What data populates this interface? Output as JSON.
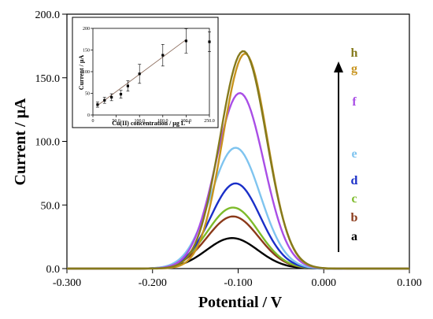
{
  "chart_data": [
    {
      "type": "line",
      "title": "",
      "xlabel": "Potential / V",
      "ylabel": "Current / μA",
      "xlim": [
        -0.3,
        0.1
      ],
      "ylim": [
        0,
        200
      ],
      "xticks": [
        -0.3,
        -0.2,
        -0.1,
        0.0,
        0.1
      ],
      "xtick_labels": [
        "-0.300",
        "-0.200",
        "-0.100",
        "0.000",
        "0.100"
      ],
      "yticks": [
        0,
        50,
        100,
        150,
        200
      ],
      "ytick_labels": [
        "0.0",
        "50.0",
        "100.0",
        "150.0",
        "200.0"
      ],
      "grid": false,
      "series": [
        {
          "name": "a",
          "color": "#000000",
          "peak_x": -0.107,
          "peak_y": 24,
          "width": 0.03
        },
        {
          "name": "b",
          "color": "#8b3a1a",
          "peak_x": -0.106,
          "peak_y": 41,
          "width": 0.03
        },
        {
          "name": "c",
          "color": "#7dbb2a",
          "peak_x": -0.106,
          "peak_y": 48,
          "width": 0.03
        },
        {
          "name": "d",
          "color": "#1a2fc8",
          "peak_x": -0.103,
          "peak_y": 67,
          "width": 0.029
        },
        {
          "name": "e",
          "color": "#7fc4ef",
          "peak_x": -0.103,
          "peak_y": 95,
          "width": 0.029
        },
        {
          "name": "f",
          "color": "#a94ee6",
          "peak_x": -0.098,
          "peak_y": 138,
          "width": 0.028
        },
        {
          "name": "g",
          "color": "#c8941e",
          "peak_x": -0.092,
          "peak_y": 169,
          "width": 0.026
        },
        {
          "name": "h",
          "color": "#857a1c",
          "peak_x": -0.094,
          "peak_y": 171,
          "width": 0.027
        }
      ],
      "arrow": "up"
    },
    {
      "type": "scatter",
      "title": "",
      "xlabel": "Cu(II) concentration / μg L⁻¹",
      "ylabel": "Current / μA",
      "xlim": [
        0,
        250
      ],
      "ylim": [
        0,
        200
      ],
      "xticks": [
        0,
        50,
        100,
        150,
        200,
        250
      ],
      "xtick_labels": [
        "0",
        "50.0",
        "100.0",
        "150.0",
        "200.0",
        "250.0"
      ],
      "yticks": [
        0,
        50,
        100,
        150,
        200
      ],
      "ytick_labels": [
        "0",
        "50",
        "100",
        "150",
        "200"
      ],
      "x": [
        10,
        25,
        40,
        60,
        75,
        100,
        150,
        200,
        250
      ],
      "y": [
        24,
        34,
        41,
        48,
        67,
        95,
        138,
        171,
        169
      ],
      "err": [
        6,
        7,
        8,
        9,
        12,
        22,
        25,
        28,
        23
      ],
      "fit": {
        "x": [
          10,
          200
        ],
        "y": [
          22,
          174
        ]
      }
    }
  ]
}
